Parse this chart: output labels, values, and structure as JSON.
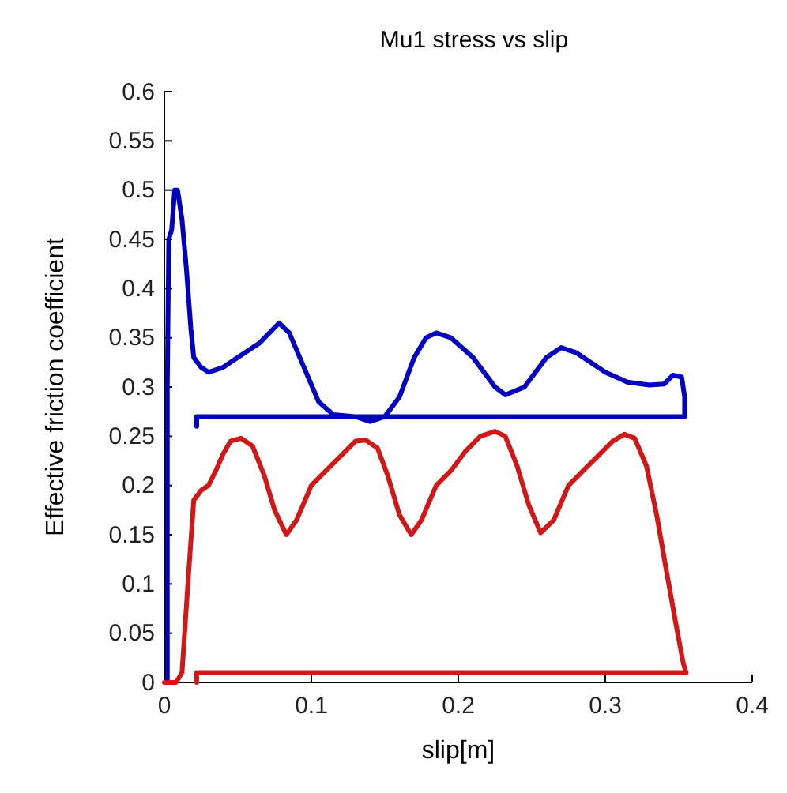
{
  "chart_data": {
    "type": "line",
    "title": "Mu1 stress vs slip",
    "xlabel": "slip[m]",
    "ylabel": "Effective friction coefficient",
    "xlim": [
      0,
      0.4
    ],
    "xticks": [
      0,
      0.1,
      0.2,
      0.3,
      0.4
    ],
    "ylim": [
      0,
      0.6
    ],
    "yticks": [
      0,
      0.05,
      0.1,
      0.15,
      0.2,
      0.25,
      0.3,
      0.35,
      0.4,
      0.45,
      0.5,
      0.55,
      0.6
    ],
    "grid": false,
    "marker": "none",
    "line_style": "solid",
    "series": [
      {
        "color": "#0000c0",
        "x": [
          0.002,
          0.002,
          0.003,
          0.005,
          0.007,
          0.009,
          0.012,
          0.015,
          0.018,
          0.02,
          0.025,
          0.03,
          0.04,
          0.05,
          0.065,
          0.078,
          0.085,
          0.095,
          0.105,
          0.115,
          0.13,
          0.14,
          0.15,
          0.16,
          0.17,
          0.178,
          0.185,
          0.195,
          0.21,
          0.225,
          0.232,
          0.245,
          0.26,
          0.27,
          0.28,
          0.29,
          0.3,
          0.315,
          0.33,
          0.34,
          0.346,
          0.352,
          0.354,
          0.354,
          0.3,
          0.2,
          0.1,
          0.05,
          0.022,
          0.022
        ],
        "values": [
          0,
          0.3,
          0.45,
          0.46,
          0.5,
          0.5,
          0.47,
          0.42,
          0.36,
          0.33,
          0.32,
          0.315,
          0.32,
          0.33,
          0.345,
          0.365,
          0.355,
          0.32,
          0.285,
          0.272,
          0.27,
          0.265,
          0.27,
          0.29,
          0.33,
          0.35,
          0.355,
          0.35,
          0.33,
          0.3,
          0.292,
          0.3,
          0.33,
          0.34,
          0.335,
          0.325,
          0.315,
          0.305,
          0.302,
          0.303,
          0.312,
          0.31,
          0.29,
          0.27,
          0.27,
          0.27,
          0.27,
          0.27,
          0.27,
          0.26
        ]
      },
      {
        "color": "#d01818",
        "x": [
          0,
          0.008,
          0.012,
          0.016,
          0.02,
          0.025,
          0.03,
          0.035,
          0.04,
          0.045,
          0.052,
          0.06,
          0.068,
          0.075,
          0.083,
          0.09,
          0.1,
          0.11,
          0.12,
          0.13,
          0.137,
          0.145,
          0.152,
          0.16,
          0.168,
          0.175,
          0.185,
          0.195,
          0.205,
          0.215,
          0.225,
          0.232,
          0.24,
          0.248,
          0.256,
          0.265,
          0.275,
          0.285,
          0.295,
          0.305,
          0.313,
          0.32,
          0.328,
          0.335,
          0.342,
          0.348,
          0.353,
          0.355,
          0.3,
          0.2,
          0.1,
          0.05,
          0.022,
          0.022
        ],
        "values": [
          0,
          0,
          0.01,
          0.1,
          0.185,
          0.195,
          0.2,
          0.215,
          0.232,
          0.245,
          0.248,
          0.24,
          0.21,
          0.175,
          0.15,
          0.165,
          0.2,
          0.215,
          0.23,
          0.245,
          0.246,
          0.238,
          0.21,
          0.17,
          0.15,
          0.165,
          0.2,
          0.215,
          0.235,
          0.25,
          0.255,
          0.25,
          0.22,
          0.18,
          0.152,
          0.165,
          0.2,
          0.215,
          0.23,
          0.245,
          0.252,
          0.248,
          0.22,
          0.17,
          0.11,
          0.06,
          0.02,
          0.01,
          0.01,
          0.01,
          0.01,
          0.01,
          0.01,
          0
        ]
      }
    ]
  }
}
